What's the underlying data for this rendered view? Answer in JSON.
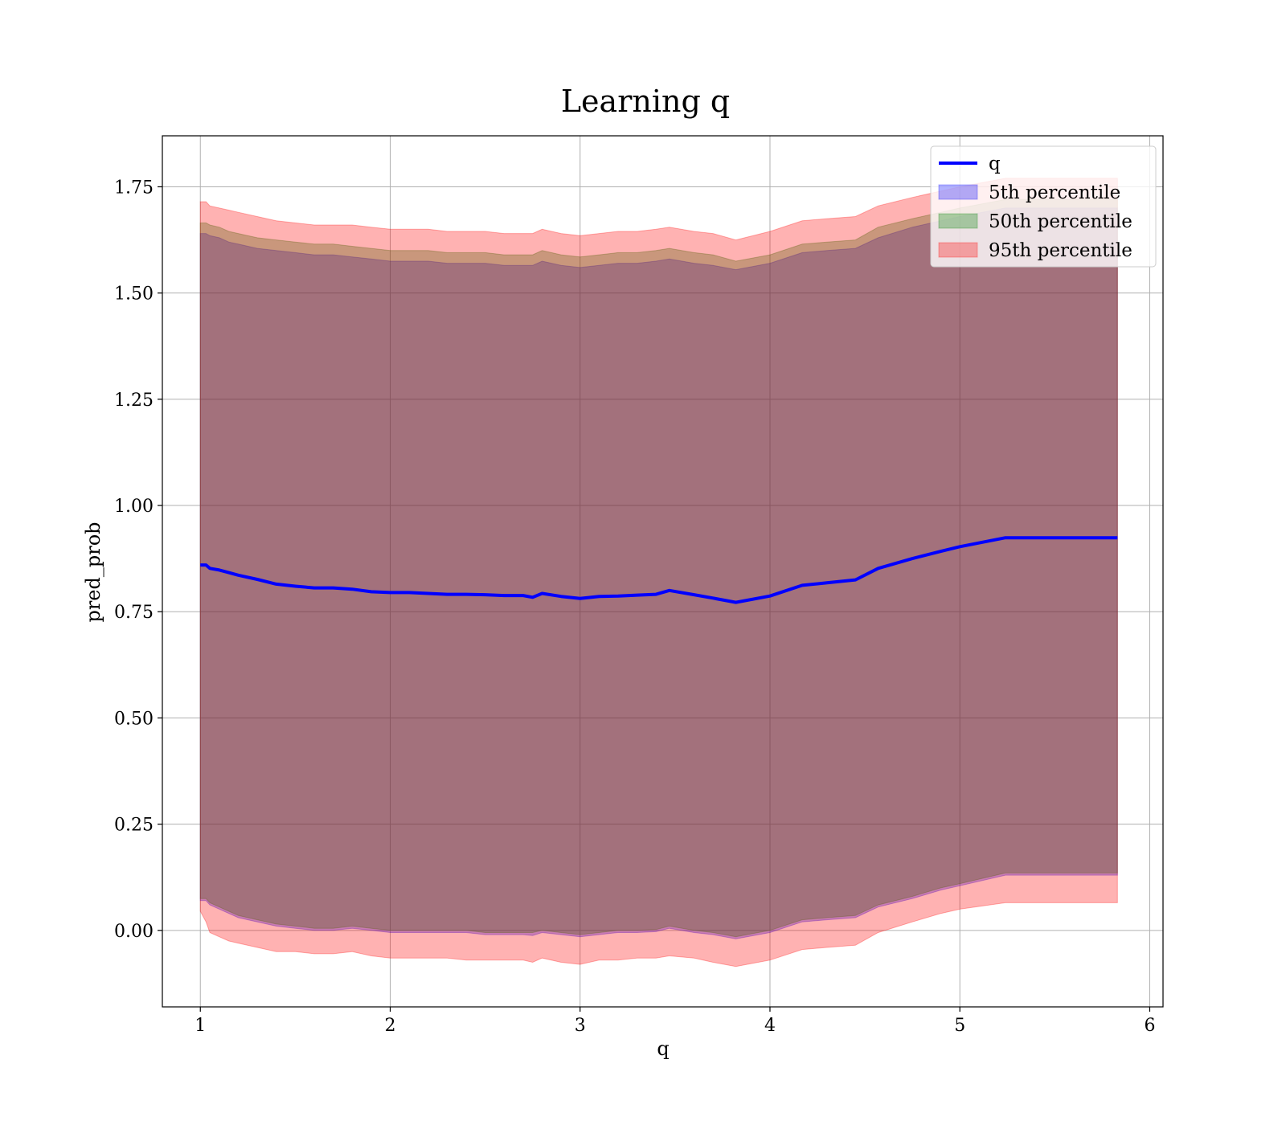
{
  "chart_data": {
    "type": "area",
    "title": "Learning q",
    "xlabel": "q",
    "ylabel": "pred_prob",
    "xlim": [
      0.8,
      6.07
    ],
    "ylim": [
      -0.18,
      1.87
    ],
    "x_ticks": [
      "1",
      "2",
      "3",
      "4",
      "5",
      "6"
    ],
    "y_ticks": [
      "0.00",
      "0.25",
      "0.50",
      "0.75",
      "1.00",
      "1.25",
      "1.50",
      "1.75"
    ],
    "grid": true,
    "legend_position": "top-right",
    "legend": [
      {
        "label": "q",
        "kind": "line",
        "color": "#0000ff"
      },
      {
        "label": "5th percentile",
        "kind": "patch",
        "color": "#0000ff"
      },
      {
        "label": "50th percentile",
        "kind": "patch",
        "color": "#008000"
      },
      {
        "label": "95th percentile",
        "kind": "patch",
        "color": "#ff0000"
      }
    ],
    "x": [
      1.0,
      1.03,
      1.05,
      1.1,
      1.15,
      1.2,
      1.3,
      1.4,
      1.5,
      1.6,
      1.7,
      1.8,
      1.9,
      2.0,
      2.1,
      2.2,
      2.3,
      2.4,
      2.5,
      2.6,
      2.7,
      2.75,
      2.8,
      2.9,
      3.0,
      3.1,
      3.2,
      3.3,
      3.4,
      3.47,
      3.6,
      3.7,
      3.82,
      4.0,
      4.17,
      4.3,
      4.45,
      4.57,
      4.75,
      4.9,
      5.0,
      5.24,
      5.5,
      5.83
    ],
    "series": [
      {
        "name": "q",
        "color": "#0000ff",
        "values": [
          0.86,
          0.86,
          0.852,
          0.848,
          0.842,
          0.836,
          0.826,
          0.815,
          0.81,
          0.806,
          0.806,
          0.803,
          0.797,
          0.795,
          0.795,
          0.793,
          0.791,
          0.791,
          0.79,
          0.788,
          0.788,
          0.784,
          0.793,
          0.786,
          0.781,
          0.786,
          0.787,
          0.789,
          0.791,
          0.8,
          0.79,
          0.782,
          0.772,
          0.787,
          0.812,
          0.818,
          0.825,
          0.852,
          0.875,
          0.892,
          0.903,
          0.924,
          0.924,
          0.924
        ]
      },
      {
        "name": "5th percentile",
        "color": "#0000ff",
        "opacity": 0.3,
        "lower": [
          0.07,
          0.07,
          0.06,
          0.05,
          0.04,
          0.03,
          0.02,
          0.01,
          0.005,
          0.0,
          0.0,
          0.005,
          0.0,
          -0.005,
          -0.005,
          -0.005,
          -0.005,
          -0.005,
          -0.01,
          -0.01,
          -0.01,
          -0.012,
          -0.005,
          -0.01,
          -0.015,
          -0.01,
          -0.005,
          -0.005,
          -0.003,
          0.005,
          -0.005,
          -0.01,
          -0.02,
          -0.005,
          0.02,
          0.025,
          0.03,
          0.055,
          0.075,
          0.095,
          0.105,
          0.13,
          0.13,
          0.13
        ],
        "upper": [
          1.64,
          1.64,
          1.635,
          1.63,
          1.62,
          1.615,
          1.605,
          1.6,
          1.595,
          1.59,
          1.59,
          1.585,
          1.58,
          1.575,
          1.575,
          1.575,
          1.57,
          1.57,
          1.57,
          1.565,
          1.565,
          1.565,
          1.575,
          1.565,
          1.56,
          1.565,
          1.57,
          1.57,
          1.575,
          1.58,
          1.57,
          1.565,
          1.555,
          1.57,
          1.595,
          1.6,
          1.605,
          1.63,
          1.655,
          1.67,
          1.68,
          1.7,
          1.7,
          1.7
        ]
      },
      {
        "name": "50th percentile",
        "color": "#008000",
        "opacity": 0.3,
        "lower": [
          0.075,
          0.075,
          0.065,
          0.055,
          0.045,
          0.035,
          0.025,
          0.015,
          0.01,
          0.005,
          0.005,
          0.01,
          0.005,
          0.0,
          0.0,
          0.0,
          0.0,
          0.0,
          -0.005,
          -0.005,
          -0.005,
          -0.005,
          0.0,
          -0.005,
          -0.01,
          -0.005,
          0.0,
          0.0,
          0.002,
          0.01,
          0.0,
          -0.005,
          -0.015,
          0.0,
          0.025,
          0.03,
          0.035,
          0.06,
          0.08,
          0.1,
          0.11,
          0.135,
          0.135,
          0.135
        ],
        "upper": [
          1.665,
          1.665,
          1.66,
          1.655,
          1.645,
          1.64,
          1.63,
          1.625,
          1.62,
          1.615,
          1.615,
          1.61,
          1.605,
          1.6,
          1.6,
          1.6,
          1.595,
          1.595,
          1.595,
          1.59,
          1.59,
          1.59,
          1.6,
          1.59,
          1.585,
          1.59,
          1.595,
          1.595,
          1.6,
          1.605,
          1.595,
          1.59,
          1.575,
          1.59,
          1.615,
          1.62,
          1.625,
          1.655,
          1.675,
          1.69,
          1.7,
          1.72,
          1.72,
          1.72
        ]
      },
      {
        "name": "95th percentile",
        "color": "#ff0000",
        "opacity": 0.3,
        "lower": [
          0.045,
          0.02,
          -0.005,
          -0.015,
          -0.025,
          -0.03,
          -0.04,
          -0.05,
          -0.05,
          -0.055,
          -0.055,
          -0.05,
          -0.06,
          -0.065,
          -0.065,
          -0.065,
          -0.065,
          -0.07,
          -0.07,
          -0.07,
          -0.07,
          -0.075,
          -0.065,
          -0.075,
          -0.08,
          -0.07,
          -0.07,
          -0.065,
          -0.065,
          -0.06,
          -0.065,
          -0.075,
          -0.085,
          -0.07,
          -0.045,
          -0.04,
          -0.035,
          -0.005,
          0.02,
          0.04,
          0.05,
          0.065,
          0.065,
          0.065
        ],
        "upper": [
          1.715,
          1.715,
          1.705,
          1.7,
          1.695,
          1.69,
          1.68,
          1.67,
          1.665,
          1.66,
          1.66,
          1.66,
          1.655,
          1.65,
          1.65,
          1.65,
          1.645,
          1.645,
          1.645,
          1.64,
          1.64,
          1.64,
          1.65,
          1.64,
          1.635,
          1.64,
          1.645,
          1.645,
          1.65,
          1.655,
          1.645,
          1.64,
          1.625,
          1.645,
          1.67,
          1.675,
          1.68,
          1.705,
          1.725,
          1.74,
          1.75,
          1.77,
          1.77,
          1.77
        ]
      }
    ]
  }
}
